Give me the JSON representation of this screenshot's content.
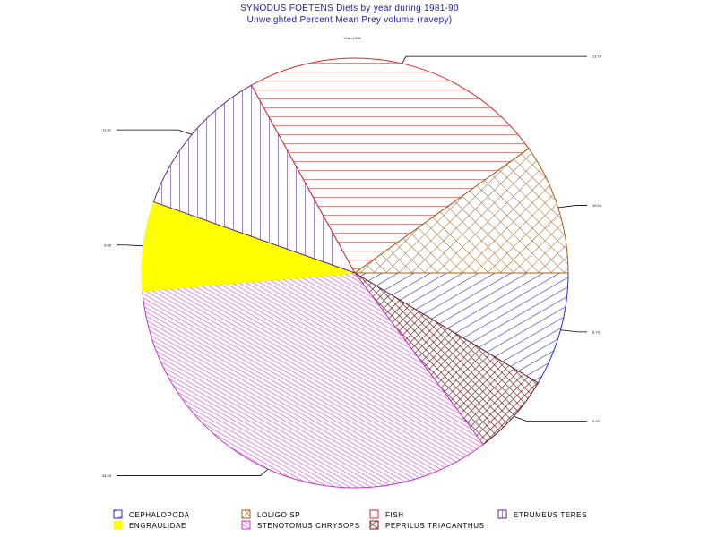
{
  "chart_data": {
    "type": "pie",
    "title": "SYNODUS FOETENS Diets by year during 1981-90",
    "subtitle": "Unweighted Percent Mean Prey volume (ravepy)",
    "note": "Year=1998",
    "slices": [
      {
        "name": "CEPHALOPODA",
        "value": 8.73,
        "label": "8.73",
        "color": "#2a2ad0",
        "pattern": "diag-up"
      },
      {
        "name": "PEPRILUS TRIACANTHUS",
        "value": 6.29,
        "label": "6.29",
        "color": "#6b1a1a",
        "pattern": "crosshatch-dense"
      },
      {
        "name": "STENOTOMUS CHRYSOPS",
        "value": 34.63,
        "label": "34.63",
        "color": "#cc33cc",
        "pattern": "diag-down-dense"
      },
      {
        "name": "ENGRAULIDAE",
        "value": 6.85,
        "label": "6.85",
        "color": "#ffff00",
        "pattern": "solid"
      },
      {
        "name": "ETRUMEUS TERES",
        "value": 11.81,
        "label": "11.81",
        "color": "#5a2a8a",
        "pattern": "vertical"
      },
      {
        "name": "FISH",
        "value": 23.7,
        "label": "23.70",
        "color": "#d42a2a",
        "pattern": "horizontal"
      },
      {
        "name": "LOLIGO SP",
        "value": 10.04,
        "label": "10.04",
        "color": "#a0601a",
        "pattern": "crosshatch"
      }
    ],
    "legend": {
      "placement": "bottom",
      "rows": [
        [
          "CEPHALOPODA",
          "LOLIGO SP",
          "FISH",
          "ETRUMEUS TERES"
        ],
        [
          "ENGRAULIDAE",
          "STENOTOMUS CHRYSOPS",
          "PEPRILUS TRIACANTHUS"
        ]
      ]
    }
  }
}
